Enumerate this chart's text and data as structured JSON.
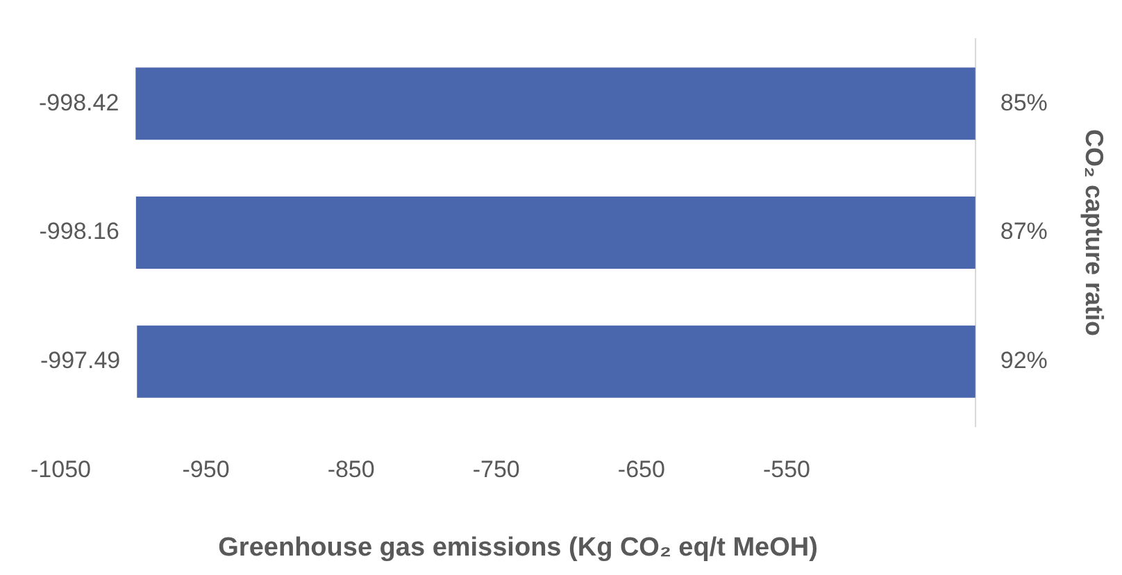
{
  "chart_data": {
    "type": "bar",
    "orientation": "horizontal",
    "xlabel": "Greenhouse gas emissions (Kg CO₂ eq/t MeOH)",
    "y2label": "CO₂ capture ratio",
    "categories": [
      "85%",
      "87%",
      "92%"
    ],
    "values": [
      -998.42,
      -998.16,
      -997.49
    ],
    "color": "#4a66ac",
    "xlim": [
      -1050,
      -420
    ],
    "xticks": [
      -1050,
      -950,
      -850,
      -750,
      -650,
      -550
    ],
    "grid": false,
    "data_labels": true
  }
}
